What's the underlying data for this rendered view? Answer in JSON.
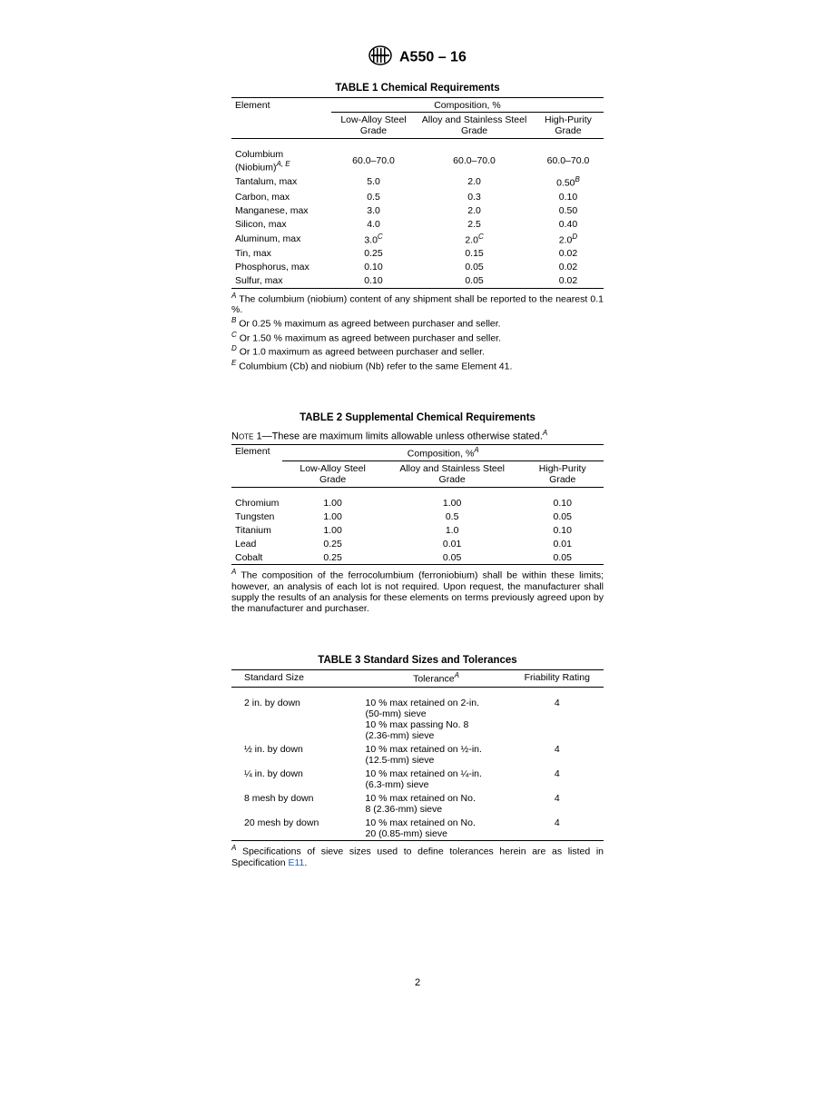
{
  "header": {
    "designation": "A550 – 16"
  },
  "table1": {
    "title": "TABLE 1 Chemical Requirements",
    "col_element": "Element",
    "col_comp": "Composition, %",
    "col_low": "Low-Alloy Steel Grade",
    "col_alloy": "Alloy and Stainless Steel Grade",
    "col_high": "High-Purity Grade",
    "rows": [
      {
        "el_html": "Columbium (Niobium)<sup>A, E</sup>",
        "low": "60.0–70.0",
        "alloy": "60.0–70.0",
        "high": "60.0–70.0"
      },
      {
        "el_html": "Tantalum, max",
        "low": "5.0",
        "alloy": "2.0",
        "high_html": "0.50<sup>B</sup>"
      },
      {
        "el_html": "Carbon, max",
        "low": "0.5",
        "alloy": "0.3",
        "high": "0.10"
      },
      {
        "el_html": "Manganese, max",
        "low": "3.0",
        "alloy": "2.0",
        "high": "0.50"
      },
      {
        "el_html": "Silicon, max",
        "low": "4.0",
        "alloy": "2.5",
        "high": "0.40"
      },
      {
        "el_html": "Aluminum, max",
        "low_html": "3.0<sup>C</sup>",
        "alloy_html": "2.0<sup>C</sup>",
        "high_html": "2.0<sup>D</sup>"
      },
      {
        "el_html": "Tin, max",
        "low": "0.25",
        "alloy": "0.15",
        "high": "0.02"
      },
      {
        "el_html": "Phosphorus, max",
        "low": "0.10",
        "alloy": "0.05",
        "high": "0.02"
      },
      {
        "el_html": "Sulfur, max",
        "low": "0.10",
        "alloy": "0.05",
        "high": "0.02"
      }
    ],
    "notes": [
      "<sup>A</sup> The columbium (niobium) content of any shipment shall be reported to the nearest 0.1 %.",
      "<sup>B</sup> Or 0.25 % maximum as agreed between purchaser and seller.",
      "<sup>C</sup> Or 1.50 % maximum as agreed between purchaser and seller.",
      "<sup>D</sup> Or 1.0 maximum as agreed between purchaser and seller.",
      "<sup>E</sup> Columbium (Cb) and niobium (Nb) refer to the same Element 41."
    ]
  },
  "table2": {
    "title": "TABLE 2 Supplemental Chemical Requirements",
    "note_html": "<span class=\"note-label\">Note</span> 1—These are maximum limits allowable unless otherwise stated.<sup>A</sup>",
    "col_element": "Element",
    "col_comp_html": "Composition, %<sup>A</sup>",
    "col_low": "Low-Alloy Steel Grade",
    "col_alloy": "Alloy and Stainless Steel Grade",
    "col_high": "High-Purity Grade",
    "rows": [
      {
        "el": "Chromium",
        "low": "1.00",
        "alloy": "1.00",
        "high": "0.10"
      },
      {
        "el": "Tungsten",
        "low": "1.00",
        "alloy": "0.5",
        "high": "0.05"
      },
      {
        "el": "Titanium",
        "low": "1.00",
        "alloy": "1.0",
        "high": "0.10"
      },
      {
        "el": "Lead",
        "low": "0.25",
        "alloy": "0.01",
        "high": "0.01"
      },
      {
        "el": "Cobalt",
        "low": "0.25",
        "alloy": "0.05",
        "high": "0.05"
      }
    ],
    "footnote_html": "<sup>A</sup> The composition of the ferrocolumbium (ferroniobium) shall be within these limits; however, an analysis of each lot is not required. Upon request, the manufacturer shall supply the results of an analysis for these elements on terms previously agreed upon by the manufacturer and purchaser."
  },
  "table3": {
    "title": "TABLE 3 Standard Sizes and Tolerances",
    "col_size": "Standard Size",
    "col_tol_html": "Tolerance<sup>A</sup>",
    "col_fri": "Friability Rating",
    "rows": [
      {
        "size": "2 in. by down",
        "tol": "10 % max retained on 2-in. (50-mm) sieve\n10 % max passing No. 8 (2.36-mm) sieve",
        "fri": "4"
      },
      {
        "size": "½ in. by down",
        "tol": "10 % max retained on ½-in. (12.5-mm) sieve",
        "fri": "4"
      },
      {
        "size": "¼ in. by down",
        "tol": "10 % max retained on ¼-in. (6.3-mm) sieve",
        "fri": "4"
      },
      {
        "size": "8 mesh by down",
        "tol": "10 % max retained on No. 8 (2.36-mm) sieve",
        "fri": "4"
      },
      {
        "size": "20 mesh by down",
        "tol": "10 % max retained on No. 20 (0.85-mm) sieve",
        "fri": "4"
      }
    ],
    "footnote_html": "<sup>A</sup> Specifications of sieve sizes used to define tolerances herein are as listed in Specification <span class=\"link\">E11</span>."
  },
  "page_number": "2"
}
